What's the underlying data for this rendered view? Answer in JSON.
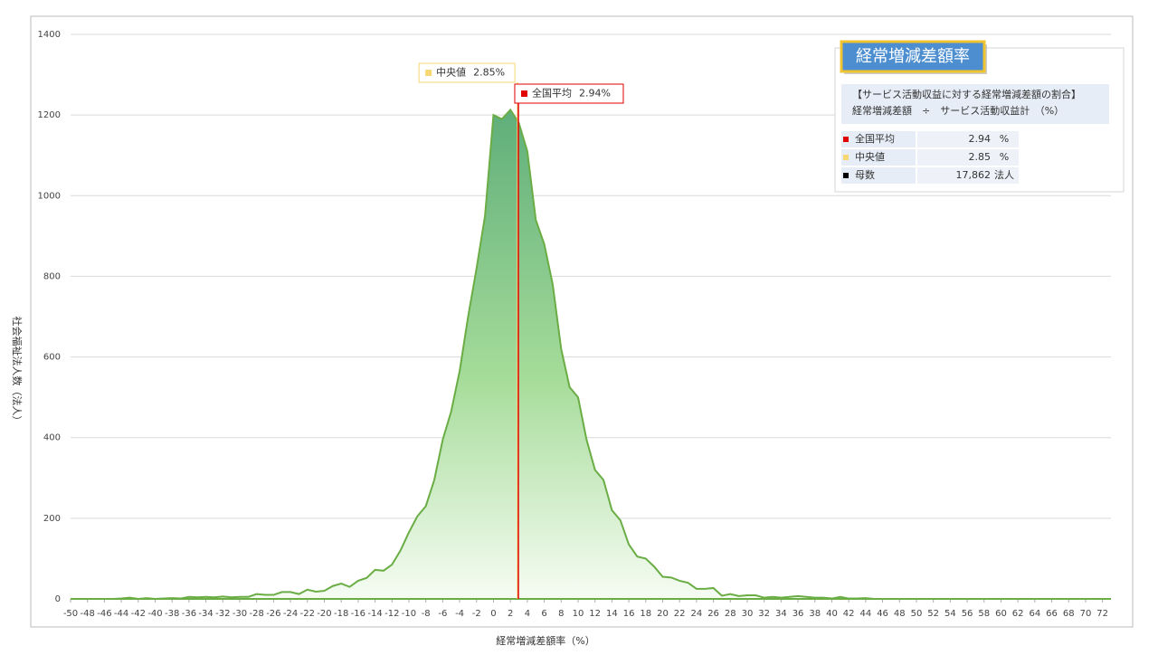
{
  "chart_data": {
    "type": "area",
    "x_label": "経常増減差額率（%）",
    "y_label": "社会福祉法人数（法人）",
    "x": [
      -50,
      -49,
      -48,
      -47,
      -46,
      -45,
      -44,
      -43,
      -42,
      -41,
      -40,
      -39,
      -38,
      -37,
      -36,
      -35,
      -34,
      -33,
      -32,
      -31,
      -30,
      -29,
      -28,
      -27,
      -26,
      -25,
      -24,
      -23,
      -22,
      -21,
      -20,
      -19,
      -18,
      -17,
      -16,
      -15,
      -14,
      -13,
      -12,
      -11,
      -10,
      -9,
      -8,
      -7,
      -6,
      -5,
      -4,
      -3,
      -2,
      -1,
      0,
      1,
      2,
      3,
      4,
      5,
      6,
      7,
      8,
      9,
      10,
      11,
      12,
      13,
      14,
      15,
      16,
      17,
      18,
      19,
      20,
      21,
      22,
      23,
      24,
      25,
      26,
      27,
      28,
      29,
      30,
      31,
      32,
      33,
      34,
      35,
      36,
      37,
      38,
      39,
      40,
      41,
      42,
      43,
      44,
      45,
      46,
      47,
      48,
      49,
      50,
      51,
      52,
      53,
      54,
      55,
      56,
      57,
      58,
      59,
      60,
      61,
      62,
      63,
      64,
      65,
      66,
      67,
      68,
      69,
      70,
      71,
      72,
      73
    ],
    "values": [
      0,
      0,
      0,
      0,
      0,
      0,
      1,
      3,
      0,
      2,
      0,
      1,
      2,
      1,
      5,
      4,
      5,
      4,
      6,
      4,
      5,
      5,
      12,
      10,
      10,
      17,
      17,
      12,
      23,
      18,
      20,
      32,
      38,
      30,
      45,
      52,
      72,
      70,
      85,
      120,
      165,
      205,
      230,
      295,
      395,
      465,
      565,
      700,
      820,
      950,
      1200,
      1190,
      1213,
      1180,
      1110,
      940,
      880,
      780,
      620,
      525,
      500,
      395,
      320,
      295,
      220,
      195,
      135,
      105,
      100,
      80,
      55,
      53,
      45,
      40,
      25,
      25,
      27,
      8,
      12,
      7,
      9,
      9,
      3,
      5,
      3,
      5,
      7,
      5,
      3,
      3,
      1,
      5,
      1,
      1,
      2,
      0,
      0,
      0,
      0,
      0,
      0,
      0,
      0,
      0,
      0,
      0,
      0,
      0,
      0,
      0,
      0,
      0,
      0,
      0,
      0,
      0,
      0,
      0,
      0,
      0,
      0,
      0,
      0,
      0
    ],
    "color": "#6aad45",
    "xlim": [
      -50,
      73
    ],
    "xticks": [
      -50,
      -48,
      -46,
      -44,
      -42,
      -40,
      -38,
      -36,
      -34,
      -32,
      -30,
      -28,
      -26,
      -24,
      -22,
      -20,
      -18,
      -16,
      -14,
      -12,
      -10,
      -8,
      -6,
      -4,
      -2,
      0,
      2,
      4,
      6,
      8,
      10,
      12,
      14,
      16,
      18,
      20,
      22,
      24,
      26,
      28,
      30,
      32,
      34,
      36,
      38,
      40,
      42,
      44,
      46,
      48,
      50,
      52,
      54,
      56,
      58,
      60,
      62,
      64,
      66,
      68,
      70,
      72
    ],
    "ylim": [
      0,
      1400
    ],
    "yticks": [
      0,
      200,
      400,
      600,
      800,
      1000,
      1200,
      1400
    ],
    "grid": true,
    "annotations": [
      {
        "name": "中央値",
        "value": 2.85,
        "label": "2.85%",
        "color": "#f7d774"
      },
      {
        "name": "全国平均",
        "value": 2.94,
        "label": "2.94%",
        "color": "#e00000"
      }
    ],
    "info_panel": {
      "title": "経常増減差額率",
      "description": [
        "【サービス活動収益に対する経常増減差額の割合】",
        "経常増減差額　÷　サービス活動収益計　（%）"
      ],
      "rows": [
        {
          "name": "全国平均",
          "value": "2.94",
          "unit": "%",
          "color": "#e00000"
        },
        {
          "name": "中央値",
          "value": "2.85",
          "unit": "%",
          "color": "#f7d774"
        },
        {
          "name": "母数",
          "value": "17,862",
          "unit": "法人",
          "color": "#000000"
        }
      ]
    }
  }
}
